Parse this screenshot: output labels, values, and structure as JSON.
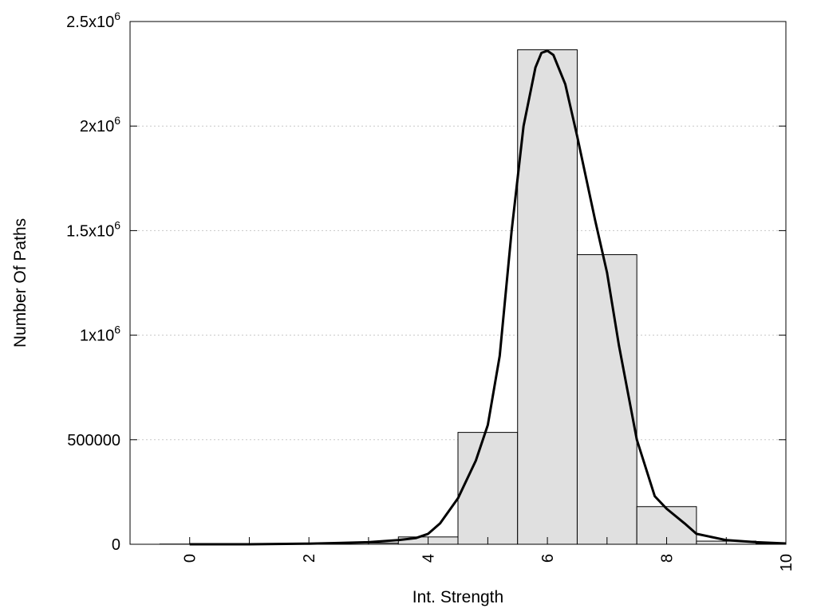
{
  "chart_data": {
    "type": "bar",
    "title": "",
    "xlabel": "Int. Strength",
    "ylabel": "Number Of Paths",
    "xlim": [
      -1,
      10
    ],
    "ylim": [
      0,
      2500000
    ],
    "grid": "horizontal-dotted",
    "legend": "none",
    "colors": {
      "bar_fill": "#e0e0e0",
      "bar_stroke": "#000000",
      "curve": "#000000"
    },
    "x_ticks": [
      {
        "value": 0,
        "label": "0"
      },
      {
        "value": 2,
        "label": "2"
      },
      {
        "value": 4,
        "label": "4"
      },
      {
        "value": 6,
        "label": "6"
      },
      {
        "value": 8,
        "label": "8"
      },
      {
        "value": 10,
        "label": "10"
      }
    ],
    "y_ticks": [
      {
        "value": 0,
        "base": "0",
        "exp": ""
      },
      {
        "value": 500000,
        "base": "500000",
        "exp": ""
      },
      {
        "value": 1000000,
        "base": "1x10",
        "exp": "6"
      },
      {
        "value": 1500000,
        "base": "1.5x10",
        "exp": "6"
      },
      {
        "value": 2000000,
        "base": "2x10",
        "exp": "6"
      },
      {
        "value": 2500000,
        "base": "2.5x10",
        "exp": "6"
      }
    ],
    "bars": [
      {
        "x": 0,
        "value": 1000
      },
      {
        "x": 1,
        "value": 1500
      },
      {
        "x": 2,
        "value": 2500
      },
      {
        "x": 3,
        "value": 6000
      },
      {
        "x": 4,
        "value": 35000
      },
      {
        "x": 5,
        "value": 535000
      },
      {
        "x": 6,
        "value": 2365000
      },
      {
        "x": 7,
        "value": 1385000
      },
      {
        "x": 8,
        "value": 180000
      },
      {
        "x": 9,
        "value": 15000
      },
      {
        "x": 10,
        "value": 3000
      }
    ],
    "curve": {
      "x": [
        0,
        1,
        2,
        2.5,
        3,
        3.5,
        3.8,
        4,
        4.2,
        4.5,
        4.8,
        5,
        5.2,
        5.4,
        5.6,
        5.8,
        5.9,
        6,
        6.1,
        6.3,
        6.5,
        6.8,
        7,
        7.2,
        7.5,
        7.8,
        8,
        8.3,
        8.5,
        9,
        9.5,
        10
      ],
      "y": [
        0,
        0,
        3000,
        6000,
        10000,
        20000,
        30000,
        50000,
        100000,
        220000,
        400000,
        570000,
        900000,
        1500000,
        2000000,
        2280000,
        2350000,
        2360000,
        2340000,
        2200000,
        1950000,
        1550000,
        1300000,
        950000,
        500000,
        230000,
        170000,
        100000,
        50000,
        20000,
        10000,
        4000
      ]
    }
  }
}
